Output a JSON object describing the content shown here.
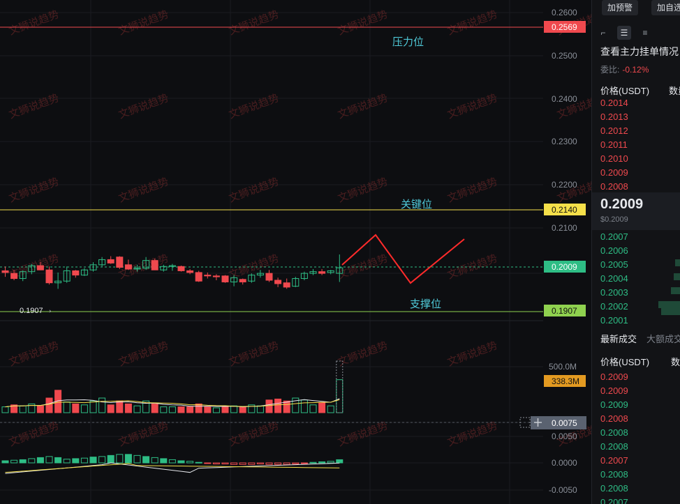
{
  "toolbar": {
    "alert_btn": "加预警",
    "watch_btn": "加自选"
  },
  "chart": {
    "price_axis_ticks": [
      "0.2600",
      "0.2500",
      "0.2400",
      "0.2300",
      "0.2200",
      "0.2100"
    ],
    "tags": {
      "resistance_price": "0.2569",
      "key_price": "0.2140",
      "current_price": "0.2009",
      "support_price": "0.1907",
      "volume_tag": "338.3M",
      "macd_tag": "0.0075"
    },
    "annotations": {
      "resistance_label": "压力位",
      "key_label": "关键位",
      "support_label": "支撑位",
      "low_marker": "0.1907"
    },
    "volume_axis": [
      "500.0M"
    ],
    "macd_axis": [
      "0.0050",
      "0.0000",
      "-0.0050"
    ],
    "watermark": "文狮说趋势",
    "colors": {
      "up": "#2ebd85",
      "down": "#f0494e",
      "resistance": "#f0494e",
      "key": "#f5e04a",
      "support": "#8fd14f",
      "projection": "#ff2b2b"
    }
  },
  "chart_data": {
    "type": "candlestick",
    "y_range": [
      0.188,
      0.262
    ],
    "levels": {
      "resistance": 0.2569,
      "key": 0.214,
      "current": 0.2009,
      "support": 0.1907
    },
    "candles": [
      {
        "o": 0.2002,
        "h": 0.2012,
        "l": 0.1988,
        "c": 0.1998
      },
      {
        "o": 0.1996,
        "h": 0.2004,
        "l": 0.198,
        "c": 0.1984
      },
      {
        "o": 0.1984,
        "h": 0.2003,
        "l": 0.1978,
        "c": 0.2
      },
      {
        "o": 0.2,
        "h": 0.2018,
        "l": 0.1994,
        "c": 0.2014
      },
      {
        "o": 0.2014,
        "h": 0.2022,
        "l": 0.2004,
        "c": 0.2004
      },
      {
        "o": 0.2004,
        "h": 0.2012,
        "l": 0.197,
        "c": 0.1974
      },
      {
        "o": 0.1974,
        "h": 0.1998,
        "l": 0.196,
        "c": 0.1978
      },
      {
        "o": 0.1978,
        "h": 0.2012,
        "l": 0.1974,
        "c": 0.2002
      },
      {
        "o": 0.2002,
        "h": 0.2004,
        "l": 0.1986,
        "c": 0.1992
      },
      {
        "o": 0.1992,
        "h": 0.2008,
        "l": 0.199,
        "c": 0.2004
      },
      {
        "o": 0.2004,
        "h": 0.2022,
        "l": 0.2,
        "c": 0.2016
      },
      {
        "o": 0.2016,
        "h": 0.2034,
        "l": 0.2012,
        "c": 0.2028
      },
      {
        "o": 0.2028,
        "h": 0.2036,
        "l": 0.2018,
        "c": 0.202
      },
      {
        "o": 0.2034,
        "h": 0.2036,
        "l": 0.2006,
        "c": 0.201
      },
      {
        "o": 0.2016,
        "h": 0.2028,
        "l": 0.2004,
        "c": 0.2006
      },
      {
        "o": 0.2006,
        "h": 0.2016,
        "l": 0.2,
        "c": 0.2008
      },
      {
        "o": 0.2008,
        "h": 0.2034,
        "l": 0.2004,
        "c": 0.2026
      },
      {
        "o": 0.2026,
        "h": 0.203,
        "l": 0.2004,
        "c": 0.2004
      },
      {
        "o": 0.2004,
        "h": 0.2016,
        "l": 0.2,
        "c": 0.2012
      },
      {
        "o": 0.2012,
        "h": 0.2018,
        "l": 0.2002,
        "c": 0.2014
      },
      {
        "o": 0.2012,
        "h": 0.2014,
        "l": 0.2,
        "c": 0.2002
      },
      {
        "o": 0.2002,
        "h": 0.2006,
        "l": 0.1994,
        "c": 0.1998
      },
      {
        "o": 0.1998,
        "h": 0.2002,
        "l": 0.1976,
        "c": 0.1978
      },
      {
        "o": 0.1992,
        "h": 0.1998,
        "l": 0.1984,
        "c": 0.199
      },
      {
        "o": 0.199,
        "h": 0.1994,
        "l": 0.198,
        "c": 0.1988
      },
      {
        "o": 0.199,
        "h": 0.1992,
        "l": 0.1974,
        "c": 0.1976
      },
      {
        "o": 0.1976,
        "h": 0.1992,
        "l": 0.1966,
        "c": 0.1986
      },
      {
        "o": 0.1982,
        "h": 0.1984,
        "l": 0.197,
        "c": 0.1976
      },
      {
        "o": 0.1978,
        "h": 0.1996,
        "l": 0.1974,
        "c": 0.1992
      },
      {
        "o": 0.1992,
        "h": 0.2004,
        "l": 0.1986,
        "c": 0.1996
      },
      {
        "o": 0.1996,
        "h": 0.2004,
        "l": 0.1976,
        "c": 0.198
      },
      {
        "o": 0.198,
        "h": 0.1986,
        "l": 0.1964,
        "c": 0.1972
      },
      {
        "o": 0.1974,
        "h": 0.1984,
        "l": 0.196,
        "c": 0.1964
      },
      {
        "o": 0.1966,
        "h": 0.1988,
        "l": 0.1964,
        "c": 0.1984
      },
      {
        "o": 0.1984,
        "h": 0.2,
        "l": 0.198,
        "c": 0.1996
      },
      {
        "o": 0.1996,
        "h": 0.2006,
        "l": 0.1992,
        "c": 0.2
      },
      {
        "o": 0.2,
        "h": 0.2006,
        "l": 0.1992,
        "c": 0.1996
      },
      {
        "o": 0.1998,
        "h": 0.2004,
        "l": 0.1994,
        "c": 0.2002
      },
      {
        "o": 0.1996,
        "h": 0.204,
        "l": 0.1976,
        "c": 0.2009
      }
    ],
    "volume": [
      {
        "v": 60,
        "up": true
      },
      {
        "v": 80,
        "up": false
      },
      {
        "v": 70,
        "up": true
      },
      {
        "v": 90,
        "up": true
      },
      {
        "v": 70,
        "up": false
      },
      {
        "v": 150,
        "up": false
      },
      {
        "v": 230,
        "up": false
      },
      {
        "v": 110,
        "up": true
      },
      {
        "v": 90,
        "up": false
      },
      {
        "v": 80,
        "up": true
      },
      {
        "v": 120,
        "up": true
      },
      {
        "v": 150,
        "up": true
      },
      {
        "v": 80,
        "up": false
      },
      {
        "v": 120,
        "up": false
      },
      {
        "v": 90,
        "up": false
      },
      {
        "v": 70,
        "up": true
      },
      {
        "v": 120,
        "up": true
      },
      {
        "v": 90,
        "up": false
      },
      {
        "v": 60,
        "up": true
      },
      {
        "v": 60,
        "up": true
      },
      {
        "v": 60,
        "up": false
      },
      {
        "v": 60,
        "up": false
      },
      {
        "v": 90,
        "up": false
      },
      {
        "v": 60,
        "up": false
      },
      {
        "v": 50,
        "up": true
      },
      {
        "v": 60,
        "up": false
      },
      {
        "v": 70,
        "up": true
      },
      {
        "v": 60,
        "up": false
      },
      {
        "v": 80,
        "up": true
      },
      {
        "v": 70,
        "up": true
      },
      {
        "v": 130,
        "up": false
      },
      {
        "v": 140,
        "up": false
      },
      {
        "v": 120,
        "up": false
      },
      {
        "v": 150,
        "up": true
      },
      {
        "v": 130,
        "up": true
      },
      {
        "v": 80,
        "up": true
      },
      {
        "v": 100,
        "up": false
      },
      {
        "v": 70,
        "up": true
      },
      {
        "v": 338,
        "up": true
      }
    ],
    "macd_hist": [
      0.0004,
      0.0005,
      0.0006,
      0.0008,
      0.001,
      0.0012,
      0.001,
      0.0007,
      0.0008,
      0.0009,
      0.0011,
      0.0012,
      0.0014,
      0.0016,
      0.0016,
      0.0014,
      0.0012,
      0.001,
      0.0008,
      0.0006,
      0.0004,
      0.0003,
      0.0001,
      -0.0001,
      -0.0002,
      -0.0002,
      -0.0003,
      -0.0003,
      -0.0003,
      -0.0002,
      -0.0003,
      -0.0003,
      -0.0003,
      -0.0002,
      -0.0001,
      0.0001,
      0.0002,
      0.0003,
      0.0006
    ]
  },
  "side": {
    "title": "查看主力挂单情况",
    "ratio_label": "委比:",
    "ratio_value": "-0.12%",
    "book_head_price": "价格(USDT)",
    "book_head_qty": "数量",
    "asks": [
      "0.2014",
      "0.2013",
      "0.2012",
      "0.2011",
      "0.2010",
      "0.2009",
      "0.2008"
    ],
    "mid_price": "0.2009",
    "mid_usd": "$0.2009",
    "bids": [
      "0.2007",
      "0.2006",
      "0.2005",
      "0.2004",
      "0.2003",
      "0.2002",
      "0.2001"
    ],
    "tab_latest": "最新成交",
    "tab_large": "大额成交",
    "trades_head_price": "价格(USDT)",
    "trades_head_qty": "数量",
    "trades": [
      {
        "p": "0.2009",
        "side": "down"
      },
      {
        "p": "0.2009",
        "side": "down"
      },
      {
        "p": "0.2009",
        "side": "up"
      },
      {
        "p": "0.2008",
        "side": "down"
      },
      {
        "p": "0.2008",
        "side": "up"
      },
      {
        "p": "0.2008",
        "side": "up"
      },
      {
        "p": "0.2007",
        "side": "down"
      },
      {
        "p": "0.2008",
        "side": "up"
      },
      {
        "p": "0.2008",
        "side": "up"
      },
      {
        "p": "0.2007",
        "side": "up"
      }
    ]
  }
}
